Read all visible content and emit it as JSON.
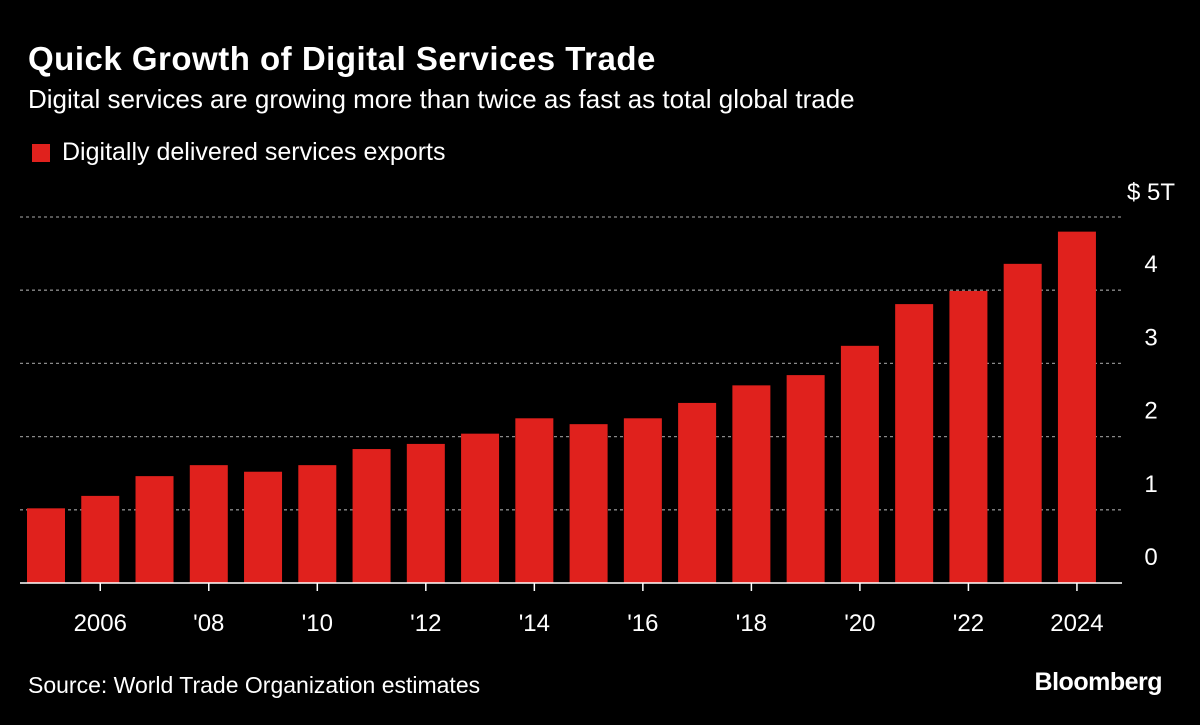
{
  "title": "Quick Growth of Digital Services Trade",
  "subtitle": "Digital services are growing more than twice as fast as total global trade",
  "source": "Source: World Trade Organization estimates",
  "logo": "Bloomberg",
  "colors": {
    "bar": "#e0211d",
    "background": "#000000",
    "grid": "#8a8a8a"
  },
  "chart_data": {
    "type": "bar",
    "legend": [
      {
        "name": "Digitally delivered services exports",
        "color": "#e0211d"
      }
    ],
    "legend_placement": "top-left",
    "categories": [
      2005,
      2006,
      2007,
      2008,
      2009,
      2010,
      2011,
      2012,
      2013,
      2014,
      2015,
      2016,
      2017,
      2018,
      2019,
      2020,
      2021,
      2022,
      2023,
      2024
    ],
    "series": [
      {
        "name": "Digitally delivered services exports",
        "values": [
          1.02,
          1.19,
          1.46,
          1.61,
          1.52,
          1.61,
          1.83,
          1.9,
          2.04,
          2.25,
          2.17,
          2.25,
          2.46,
          2.7,
          2.84,
          3.24,
          3.81,
          3.99,
          4.36,
          4.8
        ]
      }
    ],
    "ylim": [
      0,
      5
    ],
    "y_ticks": [
      {
        "value": 0,
        "label": "0"
      },
      {
        "value": 1,
        "label": "1"
      },
      {
        "value": 2,
        "label": "2"
      },
      {
        "value": 3,
        "label": "3"
      },
      {
        "value": 4,
        "label": "4"
      },
      {
        "value": 5,
        "label": "$ 5T"
      }
    ],
    "x_ticks": [
      {
        "value": 2006,
        "label": "2006"
      },
      {
        "value": 2008,
        "label": "'08"
      },
      {
        "value": 2010,
        "label": "'10"
      },
      {
        "value": 2012,
        "label": "'12"
      },
      {
        "value": 2014,
        "label": "'14"
      },
      {
        "value": 2016,
        "label": "'16"
      },
      {
        "value": 2018,
        "label": "'18"
      },
      {
        "value": 2020,
        "label": "'20"
      },
      {
        "value": 2022,
        "label": "'22"
      },
      {
        "value": 2024,
        "label": "2024"
      }
    ],
    "grid": true,
    "y_axis_position": "right"
  }
}
